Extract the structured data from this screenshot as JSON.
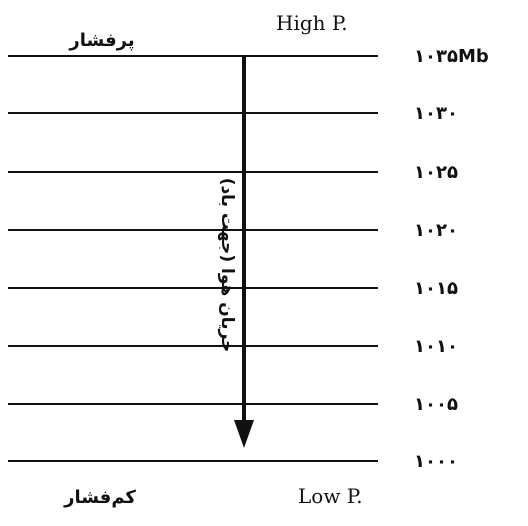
{
  "diagram": {
    "top_right_label": "High P.",
    "top_left_label": "پرفشار",
    "bottom_right_label": "Low P.",
    "bottom_left_label": "کم‌فشار",
    "flow_label": "جریان هوا (جهت باد)",
    "pressure_levels": [
      "۱۰۳۵Mb",
      "۱۰۳۰",
      "۱۰۲۵",
      "۱۰۲۰",
      "۱۰۱۵",
      "۱۰۱۰",
      "۱۰۰۵",
      "۱۰۰۰"
    ]
  }
}
